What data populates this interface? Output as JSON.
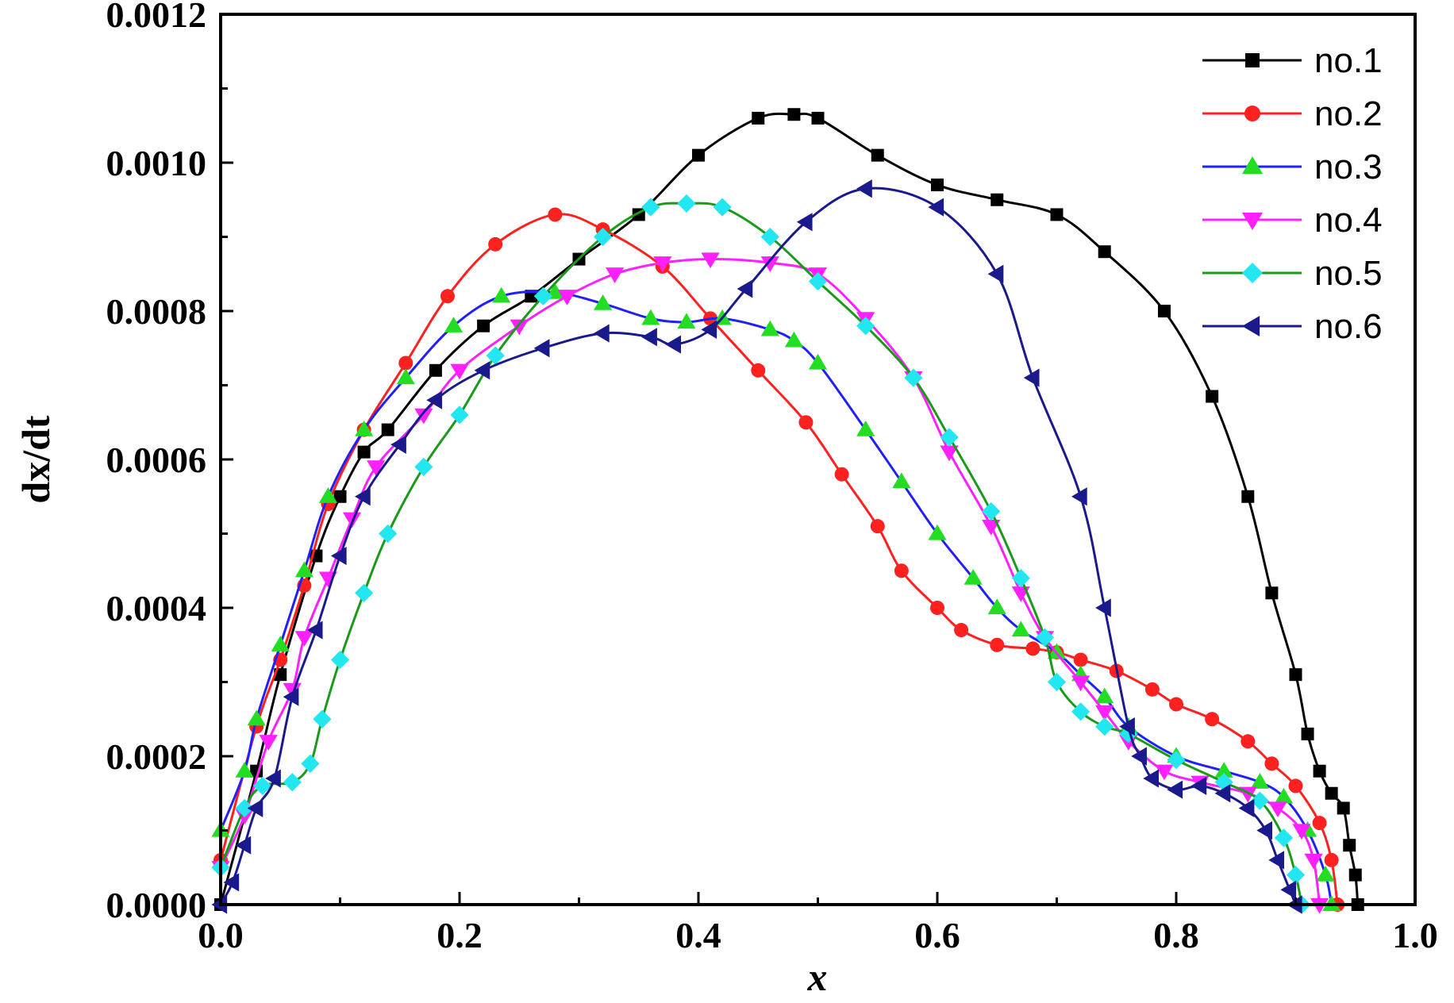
{
  "chart_data": {
    "type": "line",
    "xlabel": "x",
    "ylabel": "dx/dt",
    "xlim": [
      0.0,
      1.0
    ],
    "ylim": [
      0.0,
      0.0012
    ],
    "x_ticks": [
      "0.0",
      "0.2",
      "0.4",
      "0.6",
      "0.8",
      "1.0"
    ],
    "y_ticks": [
      "0.0000",
      "0.0002",
      "0.0004",
      "0.0006",
      "0.0008",
      "0.0010",
      "0.0012"
    ],
    "legend_position": "top-right",
    "grid": false,
    "series": [
      {
        "name": "no.1",
        "color": "#000000",
        "marker": "square",
        "points": [
          [
            0.0,
            0.0
          ],
          [
            0.03,
            0.00018
          ],
          [
            0.05,
            0.00031
          ],
          [
            0.08,
            0.00047
          ],
          [
            0.1,
            0.00055
          ],
          [
            0.12,
            0.00061
          ],
          [
            0.14,
            0.00064
          ],
          [
            0.18,
            0.00072
          ],
          [
            0.22,
            0.00078
          ],
          [
            0.26,
            0.00082
          ],
          [
            0.3,
            0.00087
          ],
          [
            0.35,
            0.00093
          ],
          [
            0.4,
            0.00101
          ],
          [
            0.45,
            0.00106
          ],
          [
            0.48,
            0.001065
          ],
          [
            0.5,
            0.00106
          ],
          [
            0.55,
            0.00101
          ],
          [
            0.6,
            0.00097
          ],
          [
            0.65,
            0.00095
          ],
          [
            0.7,
            0.00093
          ],
          [
            0.74,
            0.00088
          ],
          [
            0.79,
            0.0008
          ],
          [
            0.83,
            0.000685
          ],
          [
            0.86,
            0.00055
          ],
          [
            0.88,
            0.00042
          ],
          [
            0.9,
            0.00031
          ],
          [
            0.91,
            0.00023
          ],
          [
            0.92,
            0.00018
          ],
          [
            0.93,
            0.00015
          ],
          [
            0.94,
            0.00013
          ],
          [
            0.945,
            8e-05
          ],
          [
            0.95,
            4e-05
          ],
          [
            0.952,
            0.0
          ]
        ]
      },
      {
        "name": "no.2",
        "color": "#ff2020",
        "marker": "circle",
        "points": [
          [
            0.0,
            6e-05
          ],
          [
            0.03,
            0.00024
          ],
          [
            0.05,
            0.00033
          ],
          [
            0.07,
            0.00043
          ],
          [
            0.09,
            0.00054
          ],
          [
            0.12,
            0.00064
          ],
          [
            0.155,
            0.00073
          ],
          [
            0.19,
            0.00082
          ],
          [
            0.23,
            0.00089
          ],
          [
            0.28,
            0.00093
          ],
          [
            0.32,
            0.00091
          ],
          [
            0.37,
            0.00086
          ],
          [
            0.41,
            0.00079
          ],
          [
            0.45,
            0.00072
          ],
          [
            0.49,
            0.00065
          ],
          [
            0.52,
            0.00058
          ],
          [
            0.55,
            0.00051
          ],
          [
            0.57,
            0.00045
          ],
          [
            0.6,
            0.0004
          ],
          [
            0.62,
            0.00037
          ],
          [
            0.65,
            0.00035
          ],
          [
            0.68,
            0.000345
          ],
          [
            0.7,
            0.00034
          ],
          [
            0.72,
            0.00033
          ],
          [
            0.75,
            0.000315
          ],
          [
            0.78,
            0.00029
          ],
          [
            0.8,
            0.00027
          ],
          [
            0.83,
            0.00025
          ],
          [
            0.86,
            0.00022
          ],
          [
            0.88,
            0.00019
          ],
          [
            0.9,
            0.00016
          ],
          [
            0.92,
            0.00011
          ],
          [
            0.93,
            6e-05
          ],
          [
            0.935,
            0.0
          ]
        ]
      },
      {
        "name": "no.3",
        "color": "#2020ff",
        "marker": "triangle-up",
        "points": [
          [
            0.0,
            0.0001
          ],
          [
            0.02,
            0.00018
          ],
          [
            0.03,
            0.00025
          ],
          [
            0.05,
            0.00035
          ],
          [
            0.07,
            0.00045
          ],
          [
            0.09,
            0.00055
          ],
          [
            0.12,
            0.00064
          ],
          [
            0.155,
            0.00071
          ],
          [
            0.195,
            0.00078
          ],
          [
            0.235,
            0.00082
          ],
          [
            0.28,
            0.000825
          ],
          [
            0.32,
            0.00081
          ],
          [
            0.36,
            0.00079
          ],
          [
            0.39,
            0.000785
          ],
          [
            0.42,
            0.00079
          ],
          [
            0.46,
            0.000775
          ],
          [
            0.48,
            0.00076
          ],
          [
            0.5,
            0.00073
          ],
          [
            0.54,
            0.00064
          ],
          [
            0.57,
            0.00057
          ],
          [
            0.6,
            0.0005
          ],
          [
            0.63,
            0.00044
          ],
          [
            0.65,
            0.0004
          ],
          [
            0.67,
            0.00037
          ],
          [
            0.7,
            0.00034
          ],
          [
            0.72,
            0.00031
          ],
          [
            0.74,
            0.00028
          ],
          [
            0.76,
            0.00024
          ],
          [
            0.8,
            0.0002
          ],
          [
            0.84,
            0.00018
          ],
          [
            0.87,
            0.000165
          ],
          [
            0.89,
            0.000145
          ],
          [
            0.91,
            0.0001
          ],
          [
            0.925,
            4e-05
          ],
          [
            0.93,
            0.0
          ]
        ]
      },
      {
        "name": "no.4",
        "color": "#ff20ff",
        "marker": "triangle-down",
        "points": [
          [
            0.0,
            5e-05
          ],
          [
            0.02,
            0.00012
          ],
          [
            0.04,
            0.00022
          ],
          [
            0.06,
            0.00029
          ],
          [
            0.07,
            0.00036
          ],
          [
            0.09,
            0.00044
          ],
          [
            0.11,
            0.00052
          ],
          [
            0.13,
            0.00059
          ],
          [
            0.17,
            0.00066
          ],
          [
            0.2,
            0.00072
          ],
          [
            0.25,
            0.00078
          ],
          [
            0.29,
            0.00082
          ],
          [
            0.33,
            0.00085
          ],
          [
            0.37,
            0.000865
          ],
          [
            0.41,
            0.00087
          ],
          [
            0.46,
            0.000865
          ],
          [
            0.5,
            0.00085
          ],
          [
            0.54,
            0.00079
          ],
          [
            0.58,
            0.00071
          ],
          [
            0.61,
            0.00061
          ],
          [
            0.645,
            0.00051
          ],
          [
            0.67,
            0.00042
          ],
          [
            0.69,
            0.00036
          ],
          [
            0.72,
            0.0003
          ],
          [
            0.74,
            0.00026
          ],
          [
            0.76,
            0.00022
          ],
          [
            0.79,
            0.00018
          ],
          [
            0.82,
            0.000165
          ],
          [
            0.86,
            0.00015
          ],
          [
            0.885,
            0.00013
          ],
          [
            0.905,
            0.0001
          ],
          [
            0.915,
            6e-05
          ],
          [
            0.92,
            0.0
          ]
        ]
      },
      {
        "name": "no.5",
        "color": "#1a9a1a",
        "marker": "diamond",
        "points": [
          [
            0.0,
            5e-05
          ],
          [
            0.02,
            0.00013
          ],
          [
            0.035,
            0.00016
          ],
          [
            0.06,
            0.000165
          ],
          [
            0.075,
            0.00019
          ],
          [
            0.085,
            0.00025
          ],
          [
            0.1,
            0.00033
          ],
          [
            0.12,
            0.00042
          ],
          [
            0.14,
            0.0005
          ],
          [
            0.17,
            0.00059
          ],
          [
            0.2,
            0.00066
          ],
          [
            0.23,
            0.00074
          ],
          [
            0.27,
            0.00082
          ],
          [
            0.32,
            0.0009
          ],
          [
            0.36,
            0.00094
          ],
          [
            0.39,
            0.000945
          ],
          [
            0.42,
            0.00094
          ],
          [
            0.46,
            0.0009
          ],
          [
            0.5,
            0.00084
          ],
          [
            0.54,
            0.00078
          ],
          [
            0.58,
            0.00071
          ],
          [
            0.61,
            0.00063
          ],
          [
            0.645,
            0.00053
          ],
          [
            0.67,
            0.00044
          ],
          [
            0.69,
            0.00036
          ],
          [
            0.7,
            0.0003
          ],
          [
            0.72,
            0.00026
          ],
          [
            0.74,
            0.00024
          ],
          [
            0.76,
            0.00023
          ],
          [
            0.8,
            0.000195
          ],
          [
            0.84,
            0.000165
          ],
          [
            0.87,
            0.00014
          ],
          [
            0.89,
            9e-05
          ],
          [
            0.9,
            4e-05
          ],
          [
            0.905,
            0.0
          ]
        ]
      },
      {
        "name": "no.6",
        "color": "#1a1a8c",
        "marker": "triangle-left",
        "points": [
          [
            0.0,
            0.0
          ],
          [
            0.01,
            3e-05
          ],
          [
            0.02,
            8e-05
          ],
          [
            0.03,
            0.00013
          ],
          [
            0.045,
            0.00017
          ],
          [
            0.06,
            0.00028
          ],
          [
            0.08,
            0.00037
          ],
          [
            0.1,
            0.00047
          ],
          [
            0.12,
            0.00055
          ],
          [
            0.15,
            0.00062
          ],
          [
            0.18,
            0.00068
          ],
          [
            0.22,
            0.00072
          ],
          [
            0.27,
            0.00075
          ],
          [
            0.32,
            0.00077
          ],
          [
            0.36,
            0.000765
          ],
          [
            0.38,
            0.000755
          ],
          [
            0.41,
            0.000775
          ],
          [
            0.44,
            0.00083
          ],
          [
            0.49,
            0.00092
          ],
          [
            0.54,
            0.000965
          ],
          [
            0.6,
            0.00094
          ],
          [
            0.65,
            0.00085
          ],
          [
            0.68,
            0.00071
          ],
          [
            0.72,
            0.00055
          ],
          [
            0.74,
            0.0004
          ],
          [
            0.76,
            0.00024
          ],
          [
            0.77,
            0.0002
          ],
          [
            0.78,
            0.00017
          ],
          [
            0.8,
            0.000155
          ],
          [
            0.82,
            0.00016
          ],
          [
            0.84,
            0.00015
          ],
          [
            0.86,
            0.00013
          ],
          [
            0.875,
            0.0001
          ],
          [
            0.885,
            6e-05
          ],
          [
            0.895,
            2e-05
          ],
          [
            0.9,
            0.0
          ]
        ]
      }
    ]
  }
}
